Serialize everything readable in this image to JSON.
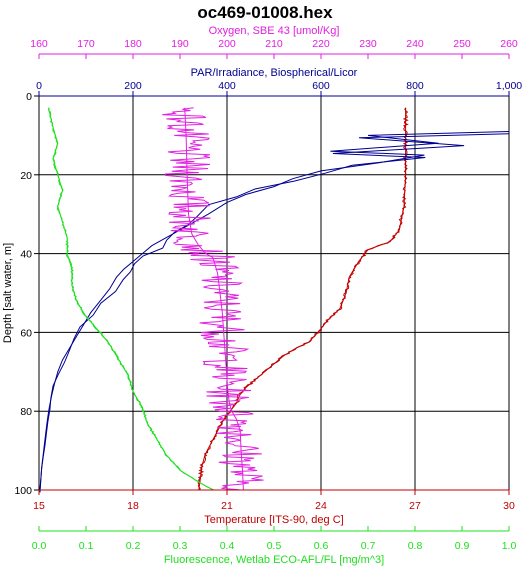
{
  "chart_data": {
    "type": "line",
    "title": "oc469-01008.hex",
    "y_axis": {
      "label": "Depth [salt water, m]",
      "range": [
        0,
        100
      ],
      "ticks": [
        "0",
        "20",
        "40",
        "60",
        "80",
        "100"
      ],
      "inverted": true
    },
    "axes": [
      {
        "id": "oxygen",
        "label": "Oxygen, SBE 43 [umol/Kg]",
        "position": "top-outer",
        "color": "#e020e0",
        "range": [
          160,
          260
        ],
        "ticks": [
          "160",
          "170",
          "180",
          "190",
          "200",
          "210",
          "220",
          "230",
          "240",
          "250",
          "260"
        ]
      },
      {
        "id": "par",
        "label": "PAR/Irradiance, Biospherical/Licor",
        "position": "top-inner",
        "color": "#000090",
        "range": [
          0,
          1000
        ],
        "ticks": [
          "0",
          "200",
          "400",
          "600",
          "800",
          "1,000"
        ]
      },
      {
        "id": "temperature",
        "label": "Temperature [ITS-90, deg C]",
        "position": "bottom-inner",
        "color": "#c00000",
        "range": [
          15,
          30
        ],
        "ticks": [
          "15",
          "18",
          "21",
          "24",
          "27",
          "30"
        ]
      },
      {
        "id": "fluorescence",
        "label": "Fluorescence, Wetlab ECO-AFL/FL [mg/m^3]",
        "position": "bottom-outer",
        "color": "#20e020",
        "range": [
          0,
          1
        ],
        "ticks": [
          "0.0",
          "0.1",
          "0.2",
          "0.3",
          "0.4",
          "0.5",
          "0.6",
          "0.7",
          "0.8",
          "0.9",
          "1.0"
        ]
      }
    ],
    "grid": true,
    "series": [
      {
        "axis": "temperature",
        "color": "#c00000",
        "points": [
          [
            26.7,
            3
          ],
          [
            26.7,
            10
          ],
          [
            26.7,
            20
          ],
          [
            26.65,
            28
          ],
          [
            26.5,
            34
          ],
          [
            26.2,
            37
          ],
          [
            25.5,
            39
          ],
          [
            25.2,
            42
          ],
          [
            24.9,
            46
          ],
          [
            24.8,
            50
          ],
          [
            24.6,
            54
          ],
          [
            24.2,
            57
          ],
          [
            23.9,
            60
          ],
          [
            23.6,
            62.5
          ],
          [
            23.2,
            64
          ],
          [
            22.8,
            66
          ],
          [
            22.5,
            68
          ],
          [
            22.2,
            70
          ],
          [
            21.9,
            72
          ],
          [
            21.6,
            74
          ],
          [
            21.4,
            76
          ],
          [
            21.3,
            78
          ],
          [
            21.1,
            80
          ],
          [
            20.9,
            82
          ],
          [
            20.7,
            85
          ],
          [
            20.5,
            88
          ],
          [
            20.3,
            91
          ],
          [
            20.2,
            94
          ],
          [
            20.15,
            97
          ],
          [
            20.1,
            100
          ]
        ]
      },
      {
        "axis": "par",
        "color": "#000090",
        "points": [
          [
            1000,
            9
          ],
          [
            700,
            10
          ],
          [
            850,
            12
          ],
          [
            620,
            14
          ],
          [
            820,
            15
          ],
          [
            720,
            17
          ],
          [
            600,
            19
          ],
          [
            540,
            21
          ],
          [
            500,
            23
          ],
          [
            440,
            25
          ],
          [
            400,
            27
          ],
          [
            360,
            30
          ],
          [
            330,
            32
          ],
          [
            300,
            34
          ],
          [
            270,
            36
          ],
          [
            240,
            38
          ],
          [
            220,
            40
          ],
          [
            200,
            42
          ],
          [
            180,
            44
          ],
          [
            165,
            46
          ],
          [
            150,
            49
          ],
          [
            130,
            52
          ],
          [
            110,
            55
          ],
          [
            95,
            58
          ],
          [
            80,
            61
          ],
          [
            65,
            64
          ],
          [
            50,
            67
          ],
          [
            40,
            70
          ],
          [
            33,
            73
          ],
          [
            27,
            76
          ],
          [
            22,
            79
          ],
          [
            18,
            82
          ],
          [
            15,
            85
          ],
          [
            12,
            88
          ],
          [
            9,
            91
          ],
          [
            6,
            94
          ],
          [
            4,
            97
          ],
          [
            2,
            100
          ]
        ]
      },
      {
        "axis": "oxygen",
        "color": "#e020e0",
        "points": [
          [
            191,
            3
          ],
          [
            191.3,
            10
          ],
          [
            191.5,
            20
          ],
          [
            191.8,
            30
          ],
          [
            192.5,
            35
          ],
          [
            194,
            38
          ],
          [
            195.5,
            40
          ],
          [
            197,
            41
          ],
          [
            198,
            45
          ],
          [
            198.5,
            50
          ],
          [
            199,
            55
          ],
          [
            199.3,
            60
          ],
          [
            199.6,
            65
          ],
          [
            199.9,
            70
          ],
          [
            200.2,
            75
          ],
          [
            200.5,
            78
          ],
          [
            201,
            80
          ],
          [
            202,
            82
          ],
          [
            202.8,
            85
          ],
          [
            203,
            90
          ],
          [
            203.3,
            95
          ],
          [
            203.5,
            100
          ]
        ]
      },
      {
        "axis": "fluorescence",
        "color": "#20e020",
        "points": [
          [
            0.02,
            3
          ],
          [
            0.03,
            8
          ],
          [
            0.04,
            12
          ],
          [
            0.03,
            16
          ],
          [
            0.04,
            20
          ],
          [
            0.05,
            24
          ],
          [
            0.04,
            28
          ],
          [
            0.05,
            32
          ],
          [
            0.06,
            36
          ],
          [
            0.06,
            40
          ],
          [
            0.07,
            44
          ],
          [
            0.07,
            48
          ],
          [
            0.08,
            52
          ],
          [
            0.1,
            56
          ],
          [
            0.13,
            60
          ],
          [
            0.15,
            63
          ],
          [
            0.17,
            67
          ],
          [
            0.19,
            71
          ],
          [
            0.2,
            75
          ],
          [
            0.22,
            79
          ],
          [
            0.23,
            83
          ],
          [
            0.25,
            87
          ],
          [
            0.27,
            91
          ],
          [
            0.3,
            95
          ],
          [
            0.34,
            98
          ],
          [
            0.37,
            100
          ]
        ]
      }
    ]
  }
}
